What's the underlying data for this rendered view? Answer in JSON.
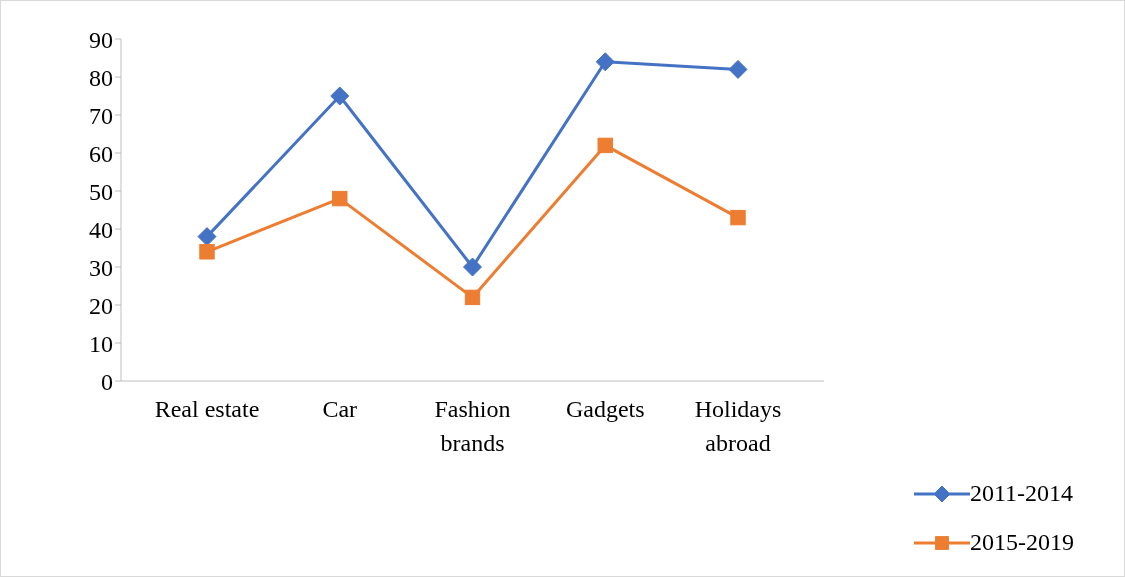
{
  "chart_data": {
    "type": "line",
    "categories": [
      "Real estate",
      "Car",
      "Fashion brands",
      "Gadgets",
      "Holidays abroad"
    ],
    "series": [
      {
        "name": "2011-2014",
        "color": "#4472c4",
        "marker": "diamond",
        "values": [
          38,
          75,
          30,
          84,
          82
        ]
      },
      {
        "name": "2015-2019",
        "color": "#ed7d31",
        "marker": "square",
        "values": [
          34,
          48,
          22,
          62,
          43
        ]
      }
    ],
    "ylim": [
      0,
      90
    ],
    "yticks": [
      0,
      10,
      20,
      30,
      40,
      50,
      60,
      70,
      80,
      90
    ],
    "grid": false,
    "legend": "bottom right",
    "line_style": "solid"
  }
}
